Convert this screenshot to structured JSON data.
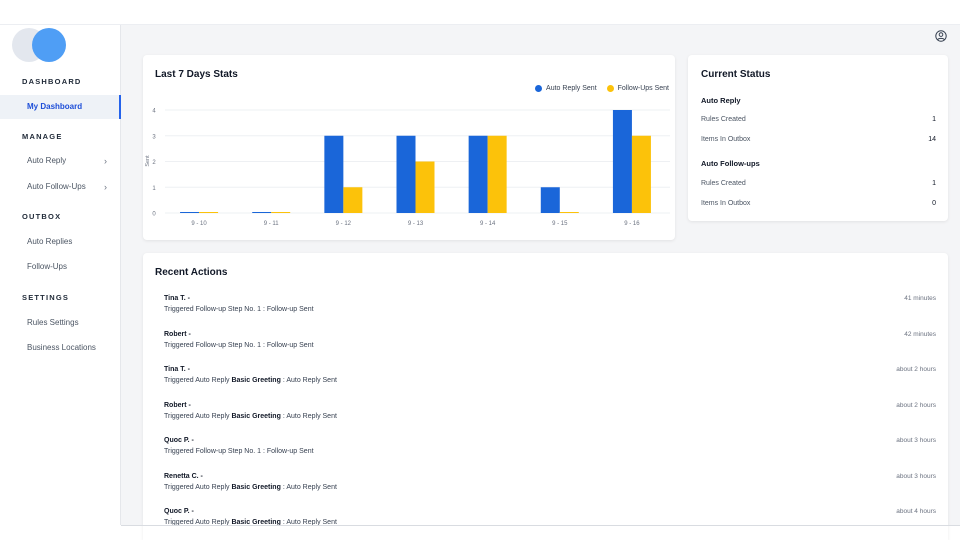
{
  "sidebar": {
    "sections": {
      "dashboard": "DASHBOARD",
      "manage": "MANAGE",
      "outbox": "OUTBOX",
      "settings": "SETTINGS"
    },
    "items": {
      "my_dashboard": "My Dashboard",
      "auto_reply": "Auto Reply",
      "auto_followups": "Auto Follow-Ups",
      "auto_replies": "Auto Replies",
      "followups": "Follow-Ups",
      "rules_settings": "Rules Settings",
      "business_locations": "Business Locations"
    }
  },
  "header": {
    "user_icon": "user-circle-icon"
  },
  "stats": {
    "title": "Last 7 Days Stats",
    "legend": {
      "auto_reply": "Auto Reply Sent",
      "followups": "Follow-Ups Sent"
    }
  },
  "chart_data": {
    "type": "bar",
    "categories": [
      "9 - 10",
      "9 - 11",
      "9 - 12",
      "9 - 13",
      "9 - 14",
      "9 - 15",
      "9 - 16"
    ],
    "series": [
      {
        "name": "Auto Reply Sent",
        "color": "#1a66d9",
        "values": [
          0,
          0,
          3,
          3,
          3,
          1,
          4
        ]
      },
      {
        "name": "Follow-Ups Sent",
        "color": "#fcc20a",
        "values": [
          0,
          0,
          1,
          2,
          3,
          0,
          3
        ]
      }
    ],
    "ylabel": "Sent",
    "ylim": [
      0,
      4
    ],
    "yticks": [
      "0",
      "1",
      "2",
      "3",
      "4"
    ],
    "grid": true,
    "legend_position": "top-right"
  },
  "status": {
    "title": "Current Status",
    "auto_reply": {
      "heading": "Auto Reply",
      "rules_label": "Rules Created",
      "rules_value": "1",
      "outbox_label": "Items In Outbox",
      "outbox_value": "14"
    },
    "auto_followups": {
      "heading": "Auto Follow-ups",
      "rules_label": "Rules Created",
      "rules_value": "1",
      "outbox_label": "Items In Outbox",
      "outbox_value": "0"
    }
  },
  "recent": {
    "title": "Recent Actions",
    "items": [
      {
        "name": "Tina T. -",
        "prefix": "Triggered Follow-up Step No. 1 : Follow-up Sent",
        "bold": "",
        "suffix": "",
        "time": "41 minutes"
      },
      {
        "name": "Robert -",
        "prefix": "Triggered Follow-up Step No. 1 : Follow-up Sent",
        "bold": "",
        "suffix": "",
        "time": "42 minutes"
      },
      {
        "name": "Tina T. -",
        "prefix": "Triggered Auto Reply ",
        "bold": "Basic Greeting",
        "suffix": " : Auto Reply Sent",
        "time": "about 2 hours"
      },
      {
        "name": "Robert -",
        "prefix": "Triggered Auto Reply ",
        "bold": "Basic Greeting",
        "suffix": " : Auto Reply Sent",
        "time": "about 2 hours"
      },
      {
        "name": "Quoc P. -",
        "prefix": "Triggered Follow-up Step No. 1 : Follow-up Sent",
        "bold": "",
        "suffix": "",
        "time": "about 3 hours"
      },
      {
        "name": "Renetta C. -",
        "prefix": "Triggered Auto Reply ",
        "bold": "Basic Greeting",
        "suffix": " : Auto Reply Sent",
        "time": "about 3 hours"
      },
      {
        "name": "Quoc P. -",
        "prefix": "Triggered Auto Reply ",
        "bold": "Basic Greeting",
        "suffix": " : Auto Reply Sent",
        "time": "about 4 hours"
      }
    ]
  }
}
